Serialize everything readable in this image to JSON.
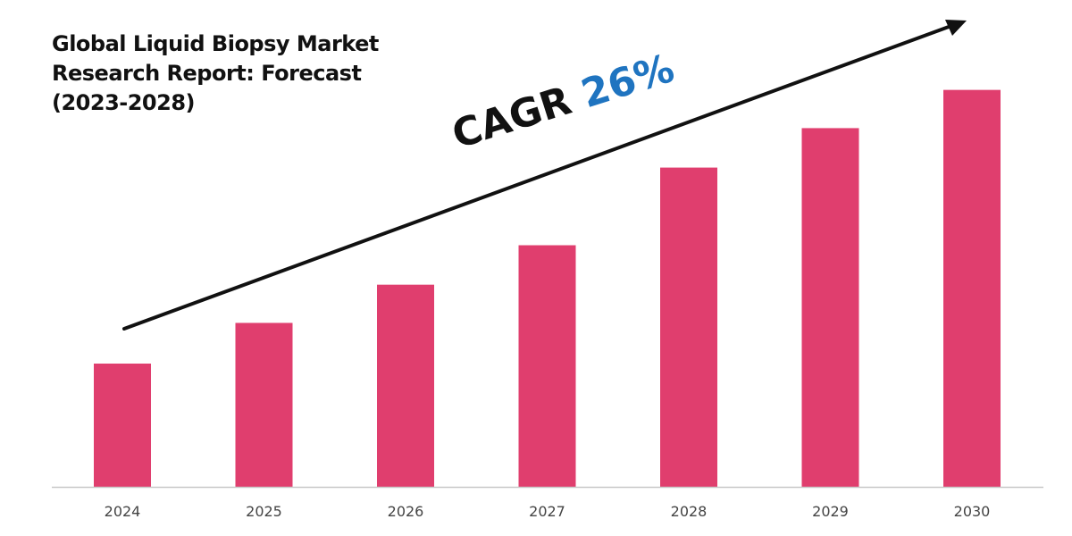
{
  "title_lines": [
    "Global Liquid Biopsy Market",
    "Research Report: Forecast",
    "(2023-2028)"
  ],
  "annotation": {
    "label": "CAGR",
    "value": "26%",
    "label_color": "#111111",
    "value_color": "#1f74c0",
    "arrow_color": "#111111"
  },
  "colors": {
    "bar": "#e03e6e",
    "axis": "#c8c8c8",
    "tick_text": "#444444"
  },
  "chart_data": {
    "type": "bar",
    "title": "Global Liquid Biopsy Market Research Report: Forecast (2023-2028)",
    "categories": [
      "2024",
      "2025",
      "2026",
      "2027",
      "2028",
      "2029",
      "2030"
    ],
    "series": [
      {
        "values": [
          1.0,
          1.33,
          1.64,
          1.96,
          2.59,
          2.91,
          3.22
        ]
      }
    ],
    "xlabel": "",
    "ylabel": "",
    "ylim": [
      0,
      3.5
    ],
    "grid": false,
    "legend": "none",
    "value_labels": false,
    "y_axis_visible": false
  }
}
